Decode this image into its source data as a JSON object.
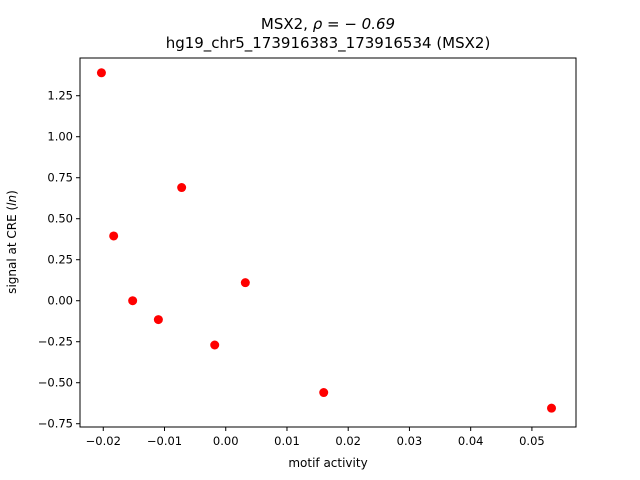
{
  "chart_data": {
    "type": "scatter",
    "title_line1_prefix": "MSX2, ",
    "title_line1_rho": "ρ = − 0.69",
    "title_line2": "hg19_chr5_173916383_173916534 (MSX2)",
    "xlabel": "motif activity",
    "ylabel_prefix": "signal at CRE (",
    "ylabel_italic": "ln",
    "ylabel_suffix": ")",
    "xlim": [
      -0.0238,
      0.0572
    ],
    "ylim": [
      -0.77,
      1.48
    ],
    "xticks": [
      -0.02,
      -0.01,
      0.0,
      0.01,
      0.02,
      0.03,
      0.04,
      0.05
    ],
    "xtick_labels": [
      "−0.02",
      "−0.01",
      "0.00",
      "0.01",
      "0.02",
      "0.03",
      "0.04",
      "0.05"
    ],
    "yticks": [
      -0.75,
      -0.5,
      -0.25,
      0.0,
      0.25,
      0.5,
      0.75,
      1.0,
      1.25
    ],
    "ytick_labels": [
      "−0.75",
      "−0.50",
      "−0.25",
      "0.00",
      "0.25",
      "0.50",
      "0.75",
      "1.00",
      "1.25"
    ],
    "grid": false,
    "marker_color": "#ff0000",
    "points": [
      {
        "x": -0.0203,
        "y": 1.39
      },
      {
        "x": -0.0183,
        "y": 0.395
      },
      {
        "x": -0.0152,
        "y": 0.0
      },
      {
        "x": -0.011,
        "y": -0.115
      },
      {
        "x": -0.0072,
        "y": 0.69
      },
      {
        "x": -0.0018,
        "y": -0.27
      },
      {
        "x": 0.0032,
        "y": 0.11
      },
      {
        "x": 0.016,
        "y": -0.56
      },
      {
        "x": 0.0532,
        "y": -0.655
      }
    ]
  }
}
